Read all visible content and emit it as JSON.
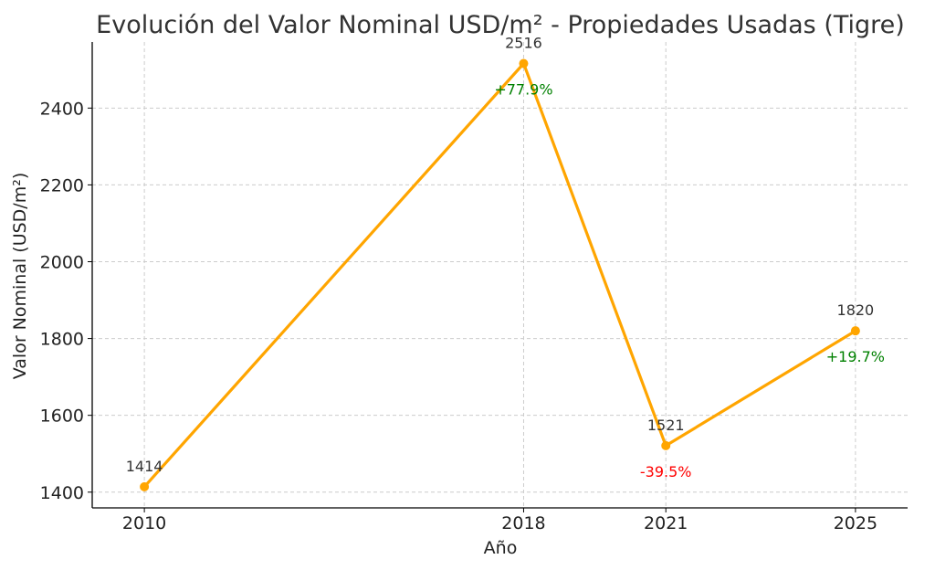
{
  "chart_data": {
    "type": "line",
    "title": "Evolución del Valor Nominal USD/m² - Propiedades Usadas (Tigre)",
    "xlabel": "Año",
    "ylabel": "Valor Nominal (USD/m²)",
    "x": [
      2010,
      2018,
      2021,
      2025
    ],
    "series": [
      {
        "values": [
          1414,
          2516,
          1521,
          1820
        ]
      }
    ],
    "value_labels": [
      "1414",
      "2516",
      "1521",
      "1820"
    ],
    "change_labels": [
      {
        "index": 1,
        "text": "+77.9%",
        "color": "#008000"
      },
      {
        "index": 2,
        "text": "-39.5%",
        "color": "#ff0000"
      },
      {
        "index": 3,
        "text": "+19.7%",
        "color": "#008000"
      }
    ],
    "yticks": [
      1400,
      1600,
      1800,
      2000,
      2200,
      2400
    ],
    "xticks": [
      2010,
      2018,
      2021,
      2025
    ],
    "ylim": [
      1359,
      2572
    ],
    "xlim": [
      2008.9,
      2026.1
    ],
    "grid": true,
    "line_color": "#FFA500"
  }
}
